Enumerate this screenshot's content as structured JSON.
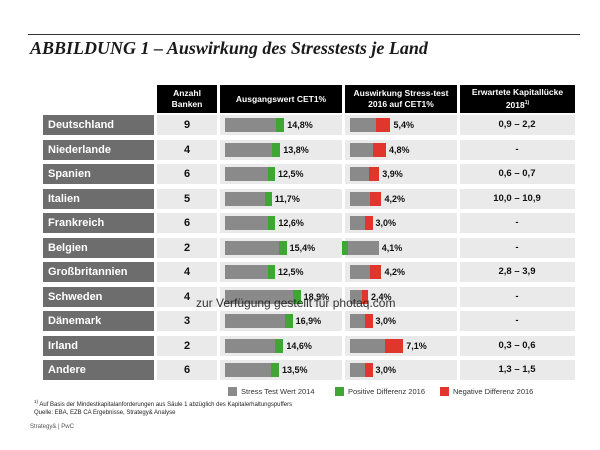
{
  "title": "ABBILDUNG 1 – Auswirkung des Stresstests je Land",
  "headers": {
    "count": "Anzahl Banken",
    "cet1": "Ausgangswert CET1%",
    "impact": "Auswirkung Stress-test 2016 auf CET1%",
    "gap": "Erwartete Kapitallücke 2018",
    "gap_footnote_mark": "1)"
  },
  "colors": {
    "stress": "#8a8a8a",
    "positive": "#3fa535",
    "negative": "#e0362e",
    "label_bg": "#6d6d6d",
    "header_bg": "#000000"
  },
  "legend": {
    "stress": "Stress Test Wert 2014",
    "positive": "Positive Differenz 2016",
    "negative": "Negative Differenz 2016"
  },
  "footnote": {
    "mark": "1)",
    "line1": "Auf Basis der Mindestkapitalanforderungen aus Säule 1 abzüglich des Kapitalerhaltungspuffers",
    "line2": "Quelle: EBA, EZB CA Ergebnisse, Strategy& Analyse"
  },
  "brand": "Strategy& | PwC",
  "watermark": "zur Verfügung gestellt für photaq.com",
  "chart_data": {
    "type": "table",
    "rows": [
      {
        "country": "Deutschland",
        "banks": "9",
        "cet1": 14.8,
        "cet1_label": "14,8%",
        "impact": 5.4,
        "impact_label": "5,4%",
        "impact_dir": "negative",
        "gap": "0,9 – 2,2"
      },
      {
        "country": "Niederlande",
        "banks": "4",
        "cet1": 13.8,
        "cet1_label": "13,8%",
        "impact": 4.8,
        "impact_label": "4,8%",
        "impact_dir": "negative",
        "gap": "-"
      },
      {
        "country": "Spanien",
        "banks": "6",
        "cet1": 12.5,
        "cet1_label": "12,5%",
        "impact": 3.9,
        "impact_label": "3,9%",
        "impact_dir": "negative",
        "gap": "0,6 – 0,7"
      },
      {
        "country": "Italien",
        "banks": "5",
        "cet1": 11.7,
        "cet1_label": "11,7%",
        "impact": 4.2,
        "impact_label": "4,2%",
        "impact_dir": "negative",
        "gap": "10,0 – 10,9"
      },
      {
        "country": "Frankreich",
        "banks": "6",
        "cet1": 12.6,
        "cet1_label": "12,6%",
        "impact": 3.0,
        "impact_label": "3,0%",
        "impact_dir": "negative",
        "gap": "-"
      },
      {
        "country": "Belgien",
        "banks": "2",
        "cet1": 15.4,
        "cet1_label": "15,4%",
        "impact": 4.1,
        "impact_label": "4,1%",
        "impact_dir": "positive",
        "gap": "-"
      },
      {
        "country": "Großbritannien",
        "banks": "4",
        "cet1": 12.5,
        "cet1_label": "12,5%",
        "impact": 4.2,
        "impact_label": "4,2%",
        "impact_dir": "negative",
        "gap": "2,8 – 3,9"
      },
      {
        "country": "Schweden",
        "banks": "4",
        "cet1": 18.9,
        "cet1_label": "18,9%",
        "impact": 2.4,
        "impact_label": "2,4%",
        "impact_dir": "negative",
        "gap": "-"
      },
      {
        "country": "Dänemark",
        "banks": "3",
        "cet1": 16.9,
        "cet1_label": "16,9%",
        "impact": 3.0,
        "impact_label": "3,0%",
        "impact_dir": "negative",
        "gap": "-"
      },
      {
        "country": "Irland",
        "banks": "2",
        "cet1": 14.6,
        "cet1_label": "14,6%",
        "impact": 7.1,
        "impact_label": "7,1%",
        "impact_dir": "negative",
        "gap": "0,3 – 0,6"
      },
      {
        "country": "Andere",
        "banks": "6",
        "cet1": 13.5,
        "cet1_label": "13,5%",
        "impact": 3.0,
        "impact_label": "3,0%",
        "impact_dir": "negative",
        "gap": "1,3 – 1,5"
      }
    ]
  }
}
